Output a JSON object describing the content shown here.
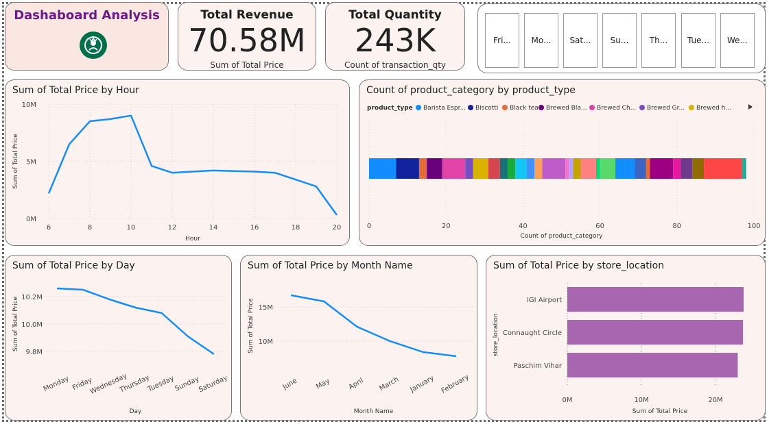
{
  "header": {
    "dashboard_title": "Dashaboard Analysis",
    "logo_text": "STARBUCKS COFFEE",
    "revenue": {
      "title": "Total Revenue",
      "value": "70.58M",
      "sub": "Sum of Total Price"
    },
    "quantity": {
      "title": "Total Quantity",
      "value": "243K",
      "sub": "Count of transaction_qty"
    }
  },
  "slicer": {
    "items": [
      "Fri...",
      "Mo...",
      "Sat...",
      "Su...",
      "Th...",
      "Tue...",
      "We..."
    ]
  },
  "colors": {
    "line": "#118dff",
    "bar_purple": "#a866b0",
    "card_bg": "#fcf3f0",
    "brand_purple": "#6a1b86"
  },
  "chart_data": [
    {
      "id": "hour",
      "type": "line",
      "title": "Sum of Total Price by Hour",
      "xlabel": "Hour",
      "ylabel": "Sum of Total Price",
      "x": [
        6,
        7,
        8,
        9,
        10,
        11,
        12,
        13,
        14,
        15,
        16,
        17,
        18,
        19,
        20
      ],
      "values": [
        2.2,
        6.5,
        8.5,
        8.7,
        9.0,
        4.6,
        4.0,
        4.1,
        4.2,
        4.15,
        4.1,
        4.0,
        3.4,
        2.8,
        0.3
      ],
      "xticks": [
        "6",
        "8",
        "10",
        "12",
        "14",
        "16",
        "18",
        "20"
      ],
      "xtick_values": [
        6,
        8,
        10,
        12,
        14,
        16,
        18,
        20
      ],
      "yticks": [
        "0M",
        "5M",
        "10M"
      ],
      "ytick_values": [
        0,
        5,
        10
      ],
      "ylim": [
        0,
        10
      ],
      "grid": true
    },
    {
      "id": "product",
      "type": "bar",
      "title": "Count of product_category by product_type",
      "xlabel": "Count of product_category",
      "legend_title": "product_type",
      "legend": [
        {
          "name": "Barista Espr...",
          "color": "#118dff"
        },
        {
          "name": "Biscotti",
          "color": "#12239e"
        },
        {
          "name": "Black tea",
          "color": "#e66c37"
        },
        {
          "name": "Brewed Bla...",
          "color": "#6b007b"
        },
        {
          "name": "Brewed Ch...",
          "color": "#e044a7"
        },
        {
          "name": "Brewed Gr...",
          "color": "#744ec2"
        },
        {
          "name": "Brewed h...",
          "color": "#d9b300"
        }
      ],
      "segments": [
        {
          "value": 7.0,
          "color": "#118dff"
        },
        {
          "value": 6.0,
          "color": "#12239e"
        },
        {
          "value": 2.0,
          "color": "#e66c37"
        },
        {
          "value": 4.0,
          "color": "#6b007b"
        },
        {
          "value": 6.0,
          "color": "#e044a7"
        },
        {
          "value": 2.0,
          "color": "#744ec2"
        },
        {
          "value": 4.0,
          "color": "#d9b300"
        },
        {
          "value": 3.0,
          "color": "#d64550"
        },
        {
          "value": 2.0,
          "color": "#197278"
        },
        {
          "value": 2.0,
          "color": "#1aab40"
        },
        {
          "value": 3.0,
          "color": "#15c6f4"
        },
        {
          "value": 2.0,
          "color": "#4092ff"
        },
        {
          "value": 2.0,
          "color": "#ffa058"
        },
        {
          "value": 6.0,
          "color": "#be5dc9"
        },
        {
          "value": 1.0,
          "color": "#f472d0"
        },
        {
          "value": 1.0,
          "color": "#b5a1ff"
        },
        {
          "value": 2.0,
          "color": "#c4a200"
        },
        {
          "value": 4.0,
          "color": "#ff8080"
        },
        {
          "value": 1.0,
          "color": "#00db77"
        },
        {
          "value": 4.0,
          "color": "#59d96a"
        },
        {
          "value": 5.0,
          "color": "#118dff"
        },
        {
          "value": 3.0,
          "color": "#3b64c4"
        },
        {
          "value": 1.0,
          "color": "#e66c37"
        },
        {
          "value": 6.0,
          "color": "#9e0082"
        },
        {
          "value": 2.0,
          "color": "#e8179f"
        },
        {
          "value": 3.0,
          "color": "#6e3a8e"
        },
        {
          "value": 3.0,
          "color": "#8f6b00"
        },
        {
          "value": 10.0,
          "color": "#fd4747"
        },
        {
          "value": 1.0,
          "color": "#1aab9b"
        }
      ],
      "xticks": [
        "0",
        "20",
        "40",
        "60",
        "80",
        "100"
      ],
      "xtick_values": [
        0,
        20,
        40,
        60,
        80,
        100
      ],
      "xlim": [
        0,
        100
      ],
      "grid": true
    },
    {
      "id": "day",
      "type": "line",
      "title": "Sum of Total Price by Day",
      "xlabel": "Day",
      "ylabel": "Sum of Total Price",
      "categories": [
        "Monday",
        "Friday",
        "Wednesday",
        "Thursday",
        "Tuesday",
        "Sunday",
        "Saturday"
      ],
      "values": [
        10.26,
        10.25,
        10.18,
        10.12,
        10.08,
        9.91,
        9.78
      ],
      "yticks": [
        "9.8M",
        "10.0M",
        "10.2M"
      ],
      "ytick_values": [
        9.8,
        10.0,
        10.2
      ],
      "ylim": [
        9.7,
        10.3
      ],
      "grid": true
    },
    {
      "id": "month",
      "type": "line",
      "title": "Sum of Total Price by Month Name",
      "xlabel": "Month Name",
      "ylabel": "Sum of Total Price",
      "categories": [
        "June",
        "May",
        "April",
        "March",
        "January",
        "February"
      ],
      "values": [
        16.7,
        15.8,
        12.1,
        10.0,
        8.4,
        7.8
      ],
      "yticks": [
        "10M",
        "15M"
      ],
      "ytick_values": [
        10,
        15
      ],
      "ylim": [
        6.5,
        18
      ],
      "grid": true
    },
    {
      "id": "store",
      "type": "bar",
      "orientation": "horizontal",
      "title": "Sum of Total Price by store_location",
      "xlabel": "Sum of Total Price",
      "ylabel": "store_location",
      "categories": [
        "IGI Airport",
        "Connaught Circle",
        "Paschim Vihar"
      ],
      "values": [
        23.8,
        23.7,
        23.0
      ],
      "xticks": [
        "0M",
        "10M",
        "20M"
      ],
      "xtick_values": [
        0,
        10,
        20
      ],
      "xlim": [
        0,
        25
      ],
      "grid": true
    }
  ]
}
